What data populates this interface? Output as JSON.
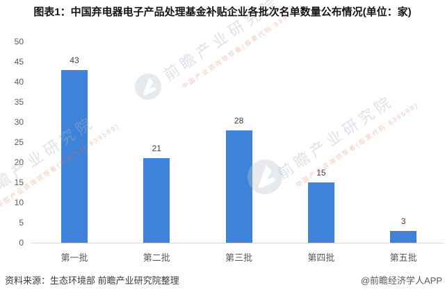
{
  "title": "图表1：中国弃电器电子产品处理基金补贴企业各批次名单数量公布情况(单位：家)",
  "chart_data": {
    "type": "bar",
    "title": "图表1：中国弃电器电子产品处理基金补贴企业各批次名单数量公布情况(单位：家)",
    "categories": [
      "第一批",
      "第二批",
      "第三批",
      "第四批",
      "第五批"
    ],
    "values": [
      43,
      21,
      28,
      15,
      3
    ],
    "ylim": [
      0,
      50
    ],
    "ytick_step": 5,
    "yticks": [
      0,
      5,
      10,
      15,
      20,
      25,
      30,
      35,
      40,
      45,
      50
    ],
    "grid": false,
    "legend_position": "none",
    "bar_color": "#3e82da",
    "axis_line_color": "#d9d9d9",
    "tick_label_color": "#595959",
    "value_label_color": "#404040",
    "xlabel": "",
    "ylabel": ""
  },
  "footer": {
    "source": "资料来源：生态环境部 前瞻产业研究院整理",
    "brand": "@前瞻经济学人APP"
  },
  "watermark": {
    "logo": "qianzhan-logo",
    "text": "前瞻产业研究院",
    "subtext": "中国产业咨询领导者(股票代码:839599)"
  }
}
